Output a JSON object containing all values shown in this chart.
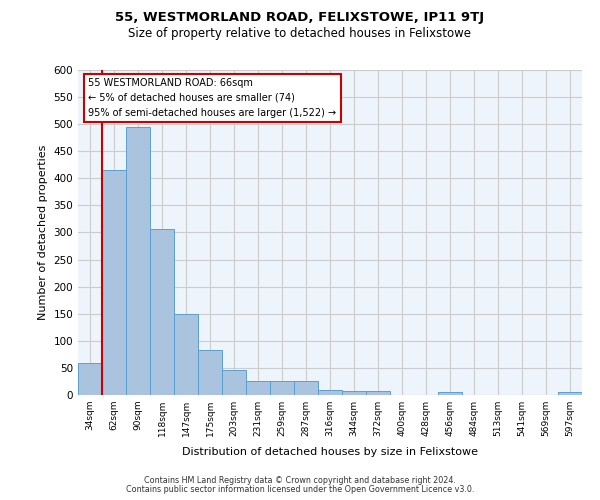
{
  "title": "55, WESTMORLAND ROAD, FELIXSTOWE, IP11 9TJ",
  "subtitle": "Size of property relative to detached houses in Felixstowe",
  "xlabel": "Distribution of detached houses by size in Felixstowe",
  "ylabel": "Number of detached properties",
  "categories": [
    "34sqm",
    "62sqm",
    "90sqm",
    "118sqm",
    "147sqm",
    "175sqm",
    "203sqm",
    "231sqm",
    "259sqm",
    "287sqm",
    "316sqm",
    "344sqm",
    "372sqm",
    "400sqm",
    "428sqm",
    "456sqm",
    "484sqm",
    "513sqm",
    "541sqm",
    "569sqm",
    "597sqm"
  ],
  "values": [
    60,
    415,
    495,
    307,
    150,
    83,
    46,
    25,
    25,
    25,
    10,
    7,
    7,
    0,
    0,
    5,
    0,
    0,
    0,
    0,
    5
  ],
  "bar_color": "#aac4e0",
  "bar_edge_color": "#5a9fd4",
  "highlight_color": "#cc0000",
  "annotation_line1": "55 WESTMORLAND ROAD: 66sqm",
  "annotation_line2": "← 5% of detached houses are smaller (74)",
  "annotation_line3": "95% of semi-detached houses are larger (1,522) →",
  "annotation_box_color": "#cc0000",
  "ylim": [
    0,
    600
  ],
  "yticks": [
    0,
    50,
    100,
    150,
    200,
    250,
    300,
    350,
    400,
    450,
    500,
    550,
    600
  ],
  "grid_color": "#cccccc",
  "bg_color": "#eef4fb",
  "footer_line1": "Contains HM Land Registry data © Crown copyright and database right 2024.",
  "footer_line2": "Contains public sector information licensed under the Open Government Licence v3.0."
}
